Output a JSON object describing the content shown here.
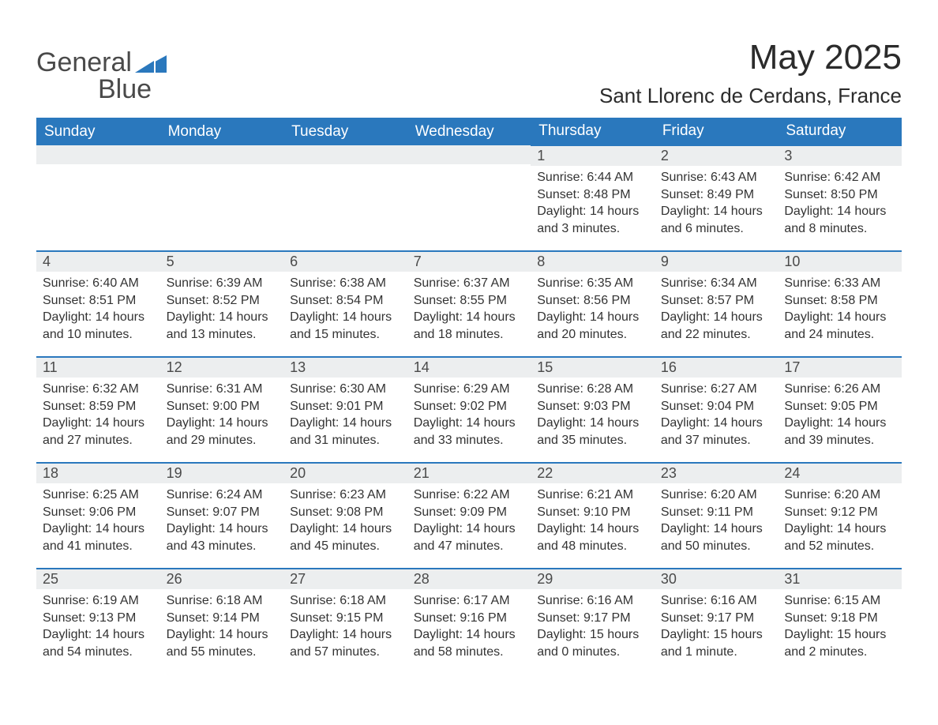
{
  "logo": {
    "word1": "General",
    "word2": "Blue"
  },
  "title": "May 2025",
  "subtitle": "Sant Llorenc de Cerdans, France",
  "colors": {
    "header_bg": "#2a78bd",
    "header_text": "#ffffff",
    "daynum_bg": "#eceeef",
    "daynum_text": "#4a4a4a",
    "body_text": "#333333",
    "rule": "#2a78bd",
    "page_bg": "#ffffff"
  },
  "typography": {
    "title_fontsize": 44,
    "subtitle_fontsize": 26,
    "th_fontsize": 19,
    "daynum_fontsize": 18,
    "body_fontsize": 16
  },
  "calendar": {
    "columns": [
      "Sunday",
      "Monday",
      "Tuesday",
      "Wednesday",
      "Thursday",
      "Friday",
      "Saturday"
    ],
    "leading_blanks": 4,
    "days": [
      {
        "num": 1,
        "sunrise": "6:44 AM",
        "sunset": "8:48 PM",
        "daylight": "14 hours and 3 minutes."
      },
      {
        "num": 2,
        "sunrise": "6:43 AM",
        "sunset": "8:49 PM",
        "daylight": "14 hours and 6 minutes."
      },
      {
        "num": 3,
        "sunrise": "6:42 AM",
        "sunset": "8:50 PM",
        "daylight": "14 hours and 8 minutes."
      },
      {
        "num": 4,
        "sunrise": "6:40 AM",
        "sunset": "8:51 PM",
        "daylight": "14 hours and 10 minutes."
      },
      {
        "num": 5,
        "sunrise": "6:39 AM",
        "sunset": "8:52 PM",
        "daylight": "14 hours and 13 minutes."
      },
      {
        "num": 6,
        "sunrise": "6:38 AM",
        "sunset": "8:54 PM",
        "daylight": "14 hours and 15 minutes."
      },
      {
        "num": 7,
        "sunrise": "6:37 AM",
        "sunset": "8:55 PM",
        "daylight": "14 hours and 18 minutes."
      },
      {
        "num": 8,
        "sunrise": "6:35 AM",
        "sunset": "8:56 PM",
        "daylight": "14 hours and 20 minutes."
      },
      {
        "num": 9,
        "sunrise": "6:34 AM",
        "sunset": "8:57 PM",
        "daylight": "14 hours and 22 minutes."
      },
      {
        "num": 10,
        "sunrise": "6:33 AM",
        "sunset": "8:58 PM",
        "daylight": "14 hours and 24 minutes."
      },
      {
        "num": 11,
        "sunrise": "6:32 AM",
        "sunset": "8:59 PM",
        "daylight": "14 hours and 27 minutes."
      },
      {
        "num": 12,
        "sunrise": "6:31 AM",
        "sunset": "9:00 PM",
        "daylight": "14 hours and 29 minutes."
      },
      {
        "num": 13,
        "sunrise": "6:30 AM",
        "sunset": "9:01 PM",
        "daylight": "14 hours and 31 minutes."
      },
      {
        "num": 14,
        "sunrise": "6:29 AM",
        "sunset": "9:02 PM",
        "daylight": "14 hours and 33 minutes."
      },
      {
        "num": 15,
        "sunrise": "6:28 AM",
        "sunset": "9:03 PM",
        "daylight": "14 hours and 35 minutes."
      },
      {
        "num": 16,
        "sunrise": "6:27 AM",
        "sunset": "9:04 PM",
        "daylight": "14 hours and 37 minutes."
      },
      {
        "num": 17,
        "sunrise": "6:26 AM",
        "sunset": "9:05 PM",
        "daylight": "14 hours and 39 minutes."
      },
      {
        "num": 18,
        "sunrise": "6:25 AM",
        "sunset": "9:06 PM",
        "daylight": "14 hours and 41 minutes."
      },
      {
        "num": 19,
        "sunrise": "6:24 AM",
        "sunset": "9:07 PM",
        "daylight": "14 hours and 43 minutes."
      },
      {
        "num": 20,
        "sunrise": "6:23 AM",
        "sunset": "9:08 PM",
        "daylight": "14 hours and 45 minutes."
      },
      {
        "num": 21,
        "sunrise": "6:22 AM",
        "sunset": "9:09 PM",
        "daylight": "14 hours and 47 minutes."
      },
      {
        "num": 22,
        "sunrise": "6:21 AM",
        "sunset": "9:10 PM",
        "daylight": "14 hours and 48 minutes."
      },
      {
        "num": 23,
        "sunrise": "6:20 AM",
        "sunset": "9:11 PM",
        "daylight": "14 hours and 50 minutes."
      },
      {
        "num": 24,
        "sunrise": "6:20 AM",
        "sunset": "9:12 PM",
        "daylight": "14 hours and 52 minutes."
      },
      {
        "num": 25,
        "sunrise": "6:19 AM",
        "sunset": "9:13 PM",
        "daylight": "14 hours and 54 minutes."
      },
      {
        "num": 26,
        "sunrise": "6:18 AM",
        "sunset": "9:14 PM",
        "daylight": "14 hours and 55 minutes."
      },
      {
        "num": 27,
        "sunrise": "6:18 AM",
        "sunset": "9:15 PM",
        "daylight": "14 hours and 57 minutes."
      },
      {
        "num": 28,
        "sunrise": "6:17 AM",
        "sunset": "9:16 PM",
        "daylight": "14 hours and 58 minutes."
      },
      {
        "num": 29,
        "sunrise": "6:16 AM",
        "sunset": "9:17 PM",
        "daylight": "15 hours and 0 minutes."
      },
      {
        "num": 30,
        "sunrise": "6:16 AM",
        "sunset": "9:17 PM",
        "daylight": "15 hours and 1 minute."
      },
      {
        "num": 31,
        "sunrise": "6:15 AM",
        "sunset": "9:18 PM",
        "daylight": "15 hours and 2 minutes."
      }
    ]
  }
}
